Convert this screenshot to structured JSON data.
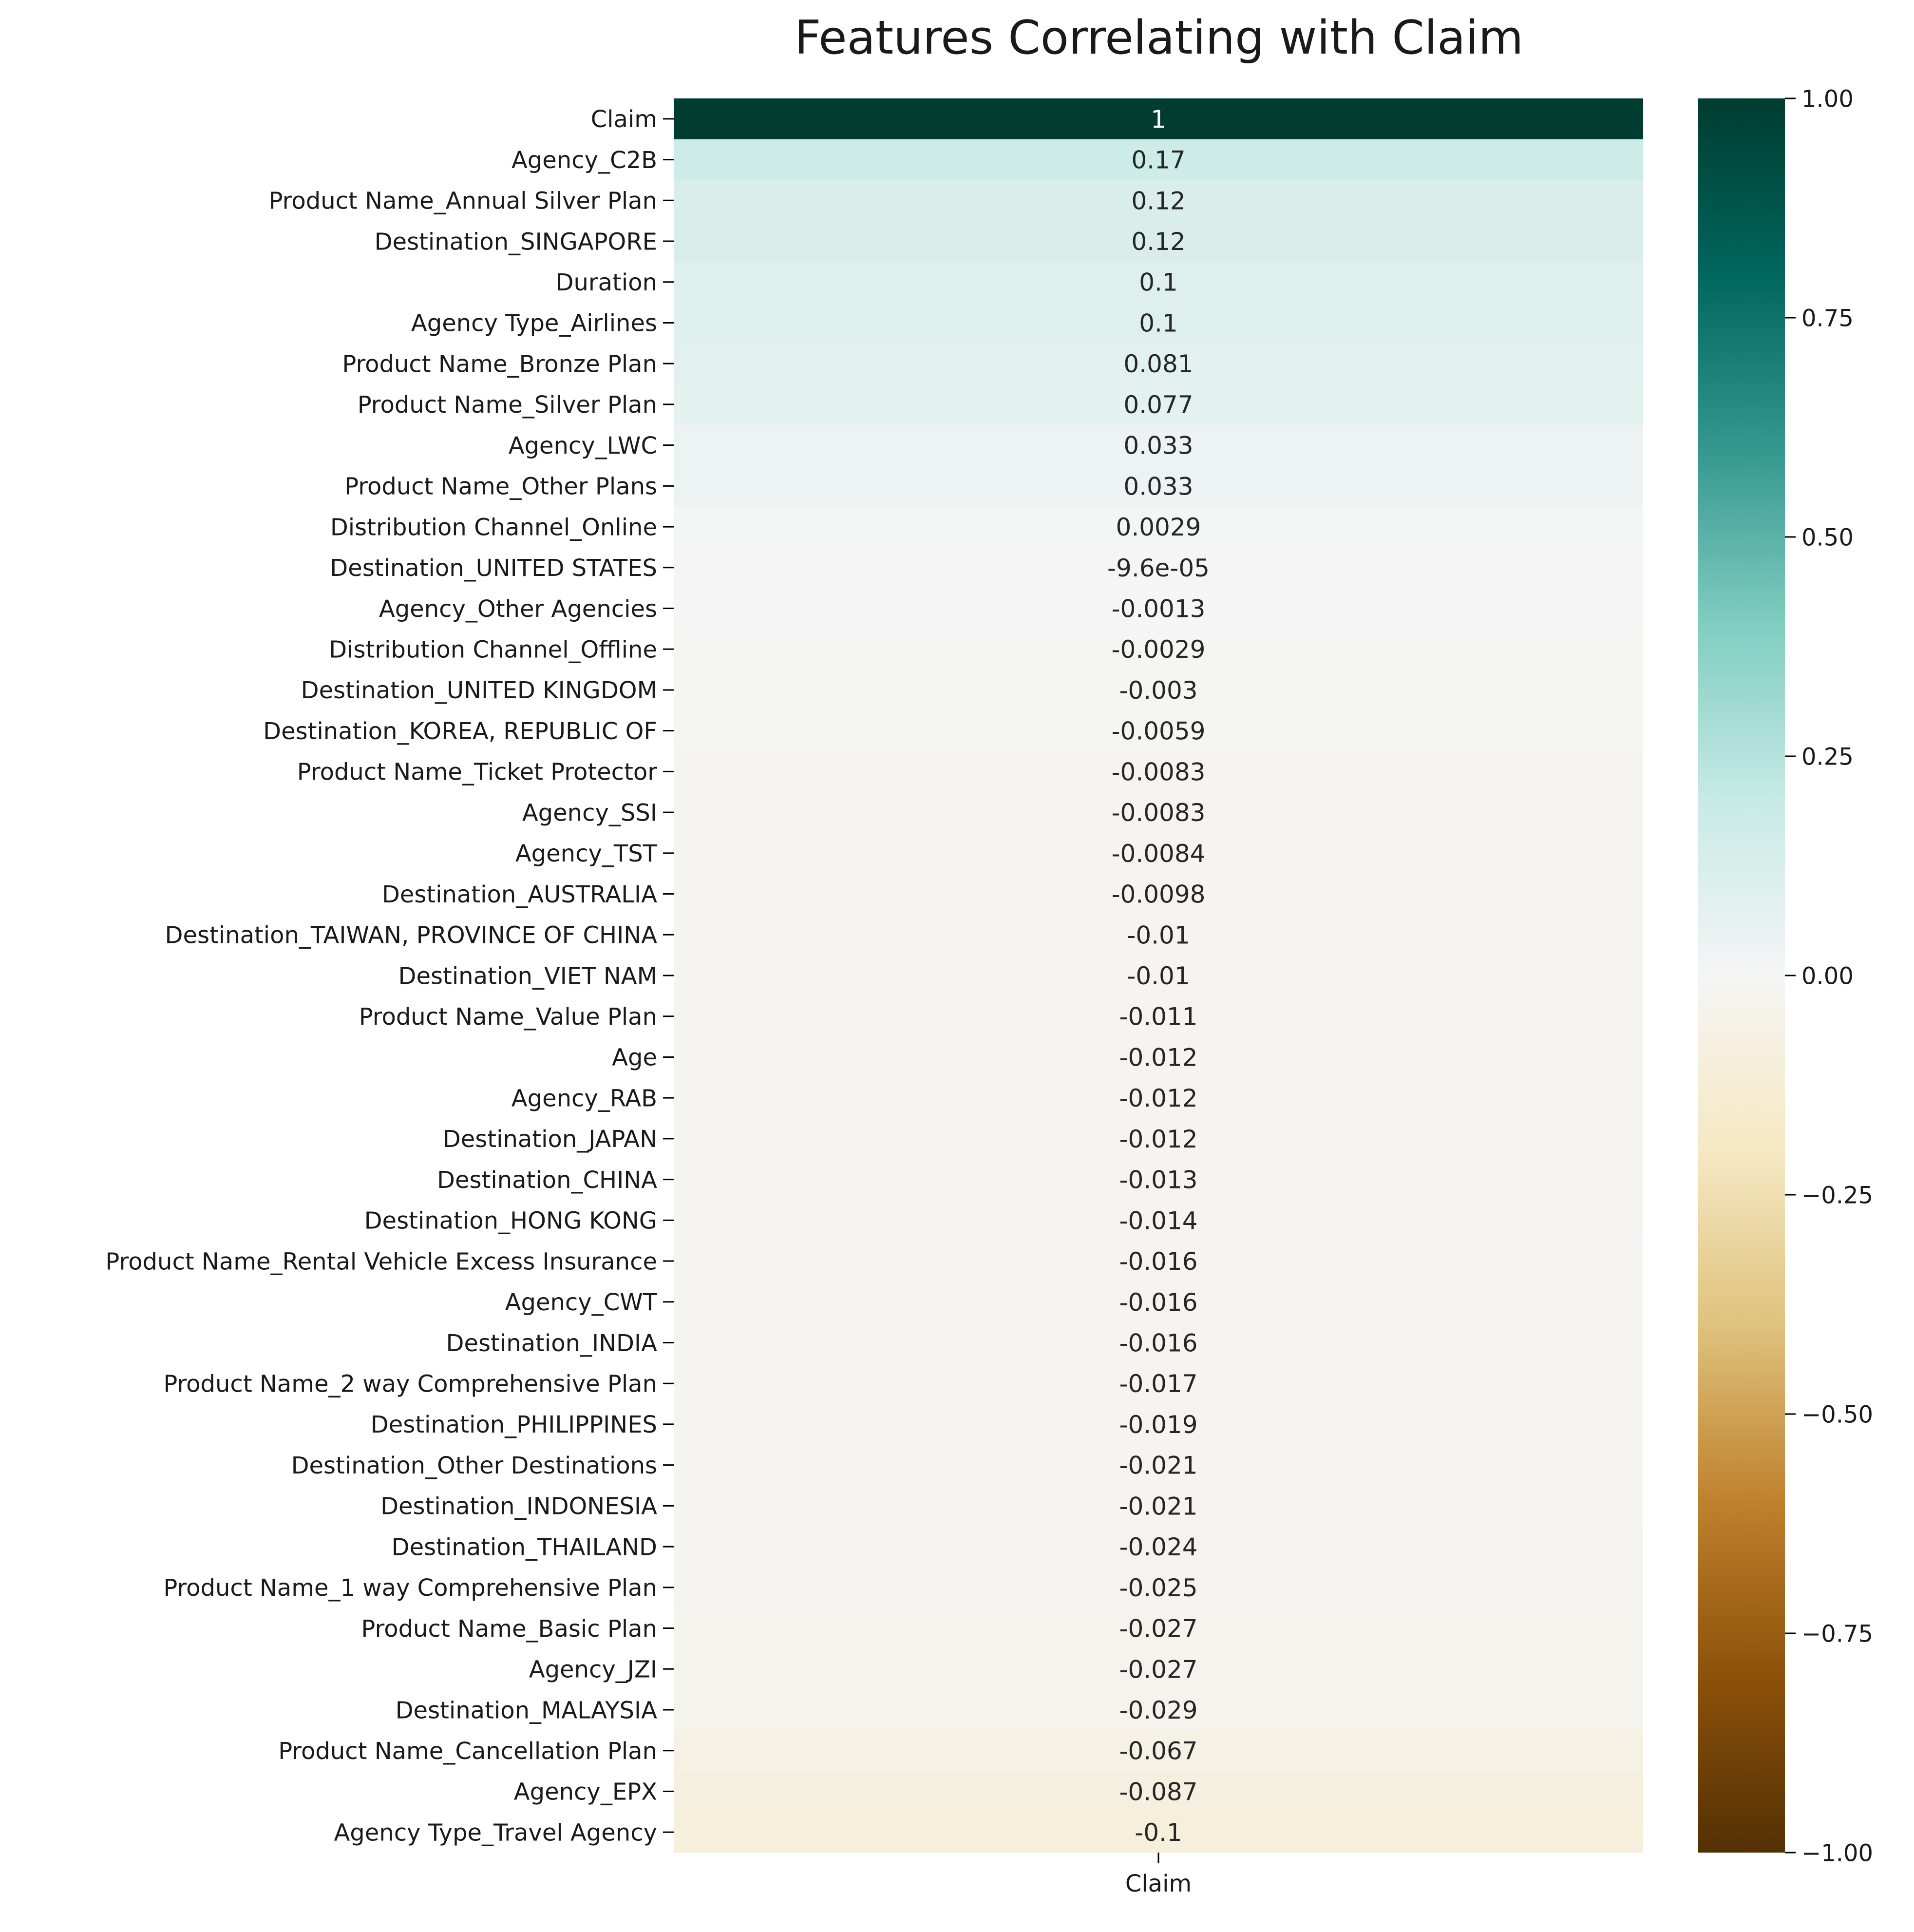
{
  "chart_data": {
    "type": "heatmap",
    "title": "Features Correlating with Claim",
    "columns": [
      "Claim"
    ],
    "xlabel": "",
    "ylabel": "",
    "rows": [
      {
        "label": "Claim",
        "value": 1,
        "text": "1"
      },
      {
        "label": "Agency_C2B",
        "value": 0.17,
        "text": "0.17"
      },
      {
        "label": "Product Name_Annual Silver Plan",
        "value": 0.12,
        "text": "0.12"
      },
      {
        "label": "Destination_SINGAPORE",
        "value": 0.12,
        "text": "0.12"
      },
      {
        "label": "Duration",
        "value": 0.1,
        "text": "0.1"
      },
      {
        "label": "Agency Type_Airlines",
        "value": 0.1,
        "text": "0.1"
      },
      {
        "label": "Product Name_Bronze Plan",
        "value": 0.081,
        "text": "0.081"
      },
      {
        "label": "Product Name_Silver Plan",
        "value": 0.077,
        "text": "0.077"
      },
      {
        "label": "Agency_LWC",
        "value": 0.033,
        "text": "0.033"
      },
      {
        "label": "Product Name_Other Plans",
        "value": 0.033,
        "text": "0.033"
      },
      {
        "label": "Distribution Channel_Online",
        "value": 0.0029,
        "text": "0.0029"
      },
      {
        "label": "Destination_UNITED STATES",
        "value": -9.6e-05,
        "text": "-9.6e-05"
      },
      {
        "label": "Agency_Other Agencies",
        "value": -0.0013,
        "text": "-0.0013"
      },
      {
        "label": "Distribution Channel_Offline",
        "value": -0.0029,
        "text": "-0.0029"
      },
      {
        "label": "Destination_UNITED KINGDOM",
        "value": -0.003,
        "text": "-0.003"
      },
      {
        "label": "Destination_KOREA, REPUBLIC OF",
        "value": -0.0059,
        "text": "-0.0059"
      },
      {
        "label": "Product Name_Ticket Protector",
        "value": -0.0083,
        "text": "-0.0083"
      },
      {
        "label": "Agency_SSI",
        "value": -0.0083,
        "text": "-0.0083"
      },
      {
        "label": "Agency_TST",
        "value": -0.0084,
        "text": "-0.0084"
      },
      {
        "label": "Destination_AUSTRALIA",
        "value": -0.0098,
        "text": "-0.0098"
      },
      {
        "label": "Destination_TAIWAN, PROVINCE OF CHINA",
        "value": -0.01,
        "text": "-0.01"
      },
      {
        "label": "Destination_VIET NAM",
        "value": -0.01,
        "text": "-0.01"
      },
      {
        "label": "Product Name_Value Plan",
        "value": -0.011,
        "text": "-0.011"
      },
      {
        "label": "Age",
        "value": -0.012,
        "text": "-0.012"
      },
      {
        "label": "Agency_RAB",
        "value": -0.012,
        "text": "-0.012"
      },
      {
        "label": "Destination_JAPAN",
        "value": -0.012,
        "text": "-0.012"
      },
      {
        "label": "Destination_CHINA",
        "value": -0.013,
        "text": "-0.013"
      },
      {
        "label": "Destination_HONG KONG",
        "value": -0.014,
        "text": "-0.014"
      },
      {
        "label": "Product Name_Rental Vehicle Excess Insurance",
        "value": -0.016,
        "text": "-0.016"
      },
      {
        "label": "Agency_CWT",
        "value": -0.016,
        "text": "-0.016"
      },
      {
        "label": "Destination_INDIA",
        "value": -0.016,
        "text": "-0.016"
      },
      {
        "label": "Product Name_2 way Comprehensive Plan",
        "value": -0.017,
        "text": "-0.017"
      },
      {
        "label": "Destination_PHILIPPINES",
        "value": -0.019,
        "text": "-0.019"
      },
      {
        "label": "Destination_Other Destinations",
        "value": -0.021,
        "text": "-0.021"
      },
      {
        "label": "Destination_INDONESIA",
        "value": -0.021,
        "text": "-0.021"
      },
      {
        "label": "Destination_THAILAND",
        "value": -0.024,
        "text": "-0.024"
      },
      {
        "label": "Product Name_1 way Comprehensive Plan",
        "value": -0.025,
        "text": "-0.025"
      },
      {
        "label": "Product Name_Basic Plan",
        "value": -0.027,
        "text": "-0.027"
      },
      {
        "label": "Agency_JZI",
        "value": -0.027,
        "text": "-0.027"
      },
      {
        "label": "Destination_MALAYSIA",
        "value": -0.029,
        "text": "-0.029"
      },
      {
        "label": "Product Name_Cancellation Plan",
        "value": -0.067,
        "text": "-0.067"
      },
      {
        "label": "Agency_EPX",
        "value": -0.087,
        "text": "-0.087"
      },
      {
        "label": "Agency Type_Travel Agency",
        "value": -0.1,
        "text": "-0.1"
      }
    ],
    "colorbar": {
      "vmin": -1,
      "vmax": 1,
      "ticks": [
        1,
        0.75,
        0.5,
        0.25,
        0,
        -0.25,
        -0.5,
        -0.75,
        -1
      ],
      "tick_labels": [
        "1.00",
        "0.75",
        "0.50",
        "0.25",
        "0.00",
        "−0.25",
        "−0.50",
        "−0.75",
        "−1.00"
      ],
      "colormap": "BrBG",
      "color_stops": [
        "#543005",
        "#8c510a",
        "#bf812d",
        "#dfc27d",
        "#f6e8c3",
        "#f5f5f5",
        "#c7eae5",
        "#80cdc1",
        "#35978f",
        "#01665e",
        "#003c30"
      ]
    },
    "grid": false,
    "legend": "colorbar-right"
  }
}
